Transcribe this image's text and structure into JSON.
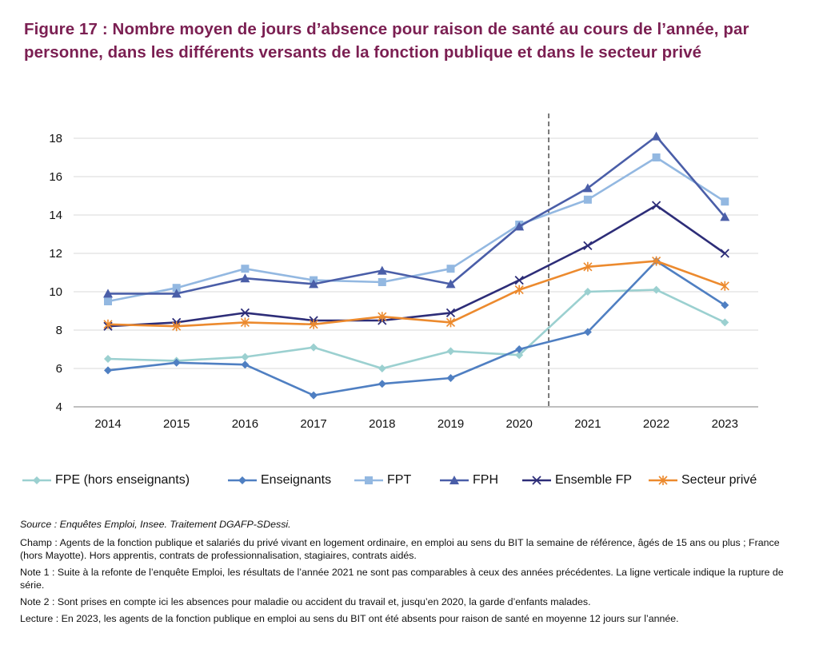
{
  "figure": {
    "title": "Figure 17 : Nombre moyen de jours d’absence pour raison de santé au cours de l’année, par personne, dans les différents versants de la fonction publique et dans le secteur privé"
  },
  "chart_data": {
    "type": "line",
    "title": "",
    "xlabel": "",
    "ylabel": "",
    "categories": [
      "2014",
      "2015",
      "2016",
      "2017",
      "2018",
      "2019",
      "2020",
      "2021",
      "2022",
      "2023"
    ],
    "y_ticks": [
      "4",
      "6",
      "8",
      "10",
      "12",
      "14",
      "16",
      "18"
    ],
    "ylim": [
      4,
      18
    ],
    "grid": "horizontal",
    "legend_position": "bottom",
    "break_line": "between 2020 and 2021 (dashed vertical line)",
    "series": [
      {
        "name": "FPE (hors enseignants)",
        "color": "#9bd0d0",
        "marker": "diamond",
        "values": [
          6.5,
          6.4,
          6.6,
          7.1,
          6.0,
          6.9,
          6.7,
          10.0,
          10.1,
          8.4
        ]
      },
      {
        "name": "Enseignants",
        "color": "#4f7fc2",
        "marker": "diamond",
        "values": [
          5.9,
          6.3,
          6.2,
          4.6,
          5.2,
          5.5,
          7.0,
          7.9,
          11.6,
          9.3
        ]
      },
      {
        "name": "FPT",
        "color": "#93b8e1",
        "marker": "square",
        "values": [
          9.5,
          10.2,
          11.2,
          10.6,
          10.5,
          11.2,
          13.5,
          14.8,
          17.0,
          14.7
        ]
      },
      {
        "name": "FPH",
        "color": "#4a5ea8",
        "marker": "triangle",
        "values": [
          9.9,
          9.9,
          10.7,
          10.4,
          11.1,
          10.4,
          13.4,
          15.4,
          18.1,
          13.9
        ]
      },
      {
        "name": "Ensemble FP",
        "color": "#2d2d78",
        "marker": "x",
        "values": [
          8.2,
          8.4,
          8.9,
          8.5,
          8.5,
          8.9,
          10.6,
          12.4,
          14.5,
          12.0
        ]
      },
      {
        "name": "Secteur privé",
        "color": "#ec8a2e",
        "marker": "asterisk",
        "values": [
          8.3,
          8.2,
          8.4,
          8.3,
          8.7,
          8.4,
          10.1,
          11.3,
          11.6,
          10.3
        ]
      }
    ]
  },
  "notes": {
    "source": "Source : Enquêtes Emploi, Insee. Traitement DGAFP-SDessi.",
    "champ": "Champ : Agents de la fonction publique et salariés du privé vivant en logement ordinaire, en emploi au sens du BIT la semaine de référence, âgés de 15 ans ou plus ; France (hors Mayotte). Hors apprentis, contrats de professionnalisation, stagiaires, contrats aidés.",
    "note1": "Note 1 : Suite à la refonte de l’enquête Emploi, les résultats de l’année 2021 ne sont pas comparables à ceux des années précédentes. La ligne verticale indique la rupture de série.",
    "note2": "Note 2 : Sont prises en compte ici les absences pour maladie ou accident du travail et, jusqu’en 2020, la garde d’enfants malades.",
    "lecture": "Lecture : En 2023, les agents de la fonction publique en emploi au sens du BIT ont été absents pour raison de santé en moyenne 12 jours sur l’année."
  }
}
